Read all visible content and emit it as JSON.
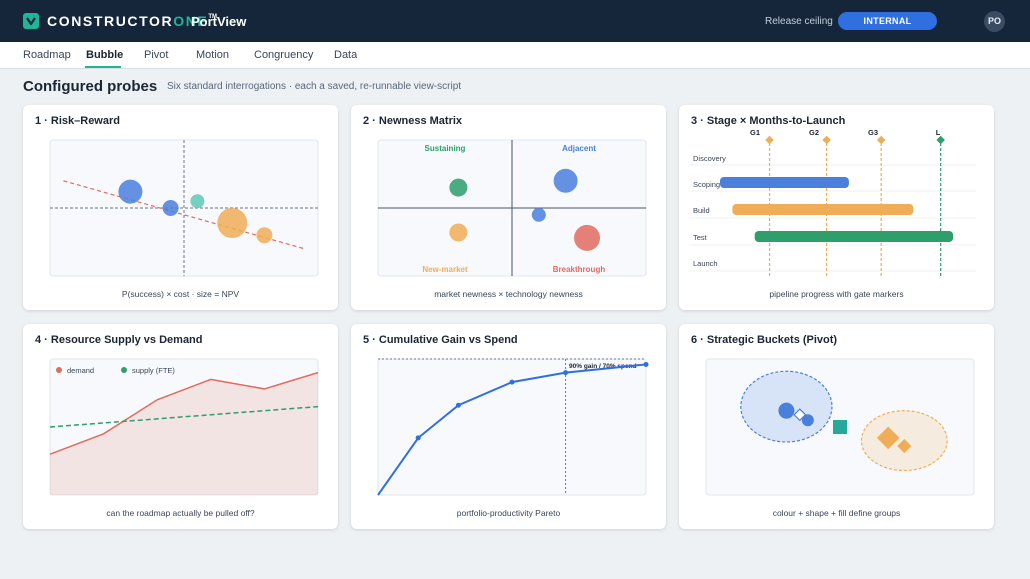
{
  "header": {
    "brand_main": "CONSTRUCTOR",
    "brand_accent": "ONE",
    "brand_tm": "TM",
    "product": "PortView",
    "release_ceiling_label": "Release ceiling",
    "release_ceiling_value": "INTERNAL",
    "avatar_initials": "PO",
    "logo_icon": "chevron-down-badge-icon"
  },
  "tabs": [
    {
      "label": "Roadmap",
      "active": false
    },
    {
      "label": "Bubble",
      "active": true
    },
    {
      "label": "Pivot",
      "active": false
    },
    {
      "label": "Motion",
      "active": false
    },
    {
      "label": "Congruency",
      "active": false
    },
    {
      "label": "Data",
      "active": false
    }
  ],
  "page": {
    "title": "Configured probes",
    "subtitle": "Six standard interrogations · each a saved, re-runnable view-script"
  },
  "colors": {
    "blue": "#4a7fdc",
    "teal": "#5fc9b6",
    "green": "#2e9e6a",
    "orange": "#f0ad57",
    "red": "#e06b5f",
    "accent": "#1fb59a",
    "nav": "#16263a"
  },
  "cards": [
    {
      "title": "1 · Risk–Reward",
      "caption": "P(success) × cost · size = NPV"
    },
    {
      "title": "2 · Newness Matrix",
      "caption": "market newness × technology newness",
      "quadrants": {
        "top_left": "Sustaining",
        "top_right": "Adjacent",
        "bottom_left": "New-market",
        "bottom_right": "Breakthrough"
      }
    },
    {
      "title": "3 · Stage × Months-to-Launch",
      "caption": "pipeline progress with gate markers",
      "gates": [
        "G1",
        "G2",
        "G3",
        "L"
      ],
      "stages": [
        "Discovery",
        "Scoping",
        "Build",
        "Test",
        "Launch"
      ]
    },
    {
      "title": "4 · Resource Supply vs Demand",
      "caption": "can the roadmap actually be pulled off?",
      "legend": [
        "demand",
        "supply (FTE)"
      ]
    },
    {
      "title": "5 · Cumulative Gain vs Spend",
      "caption": "portfolio-productivity Pareto",
      "annotation": "90% gain / 70% spend"
    },
    {
      "title": "6 · Strategic Buckets (Pivot)",
      "caption": "colour + shape + fill define groups"
    }
  ],
  "chart_data": [
    {
      "type": "scatter",
      "title": "1 · Risk–Reward",
      "xlabel": "",
      "ylabel": "",
      "points": [
        {
          "x": 0.3,
          "y": 0.62,
          "size": 12,
          "color": "#4a7fdc"
        },
        {
          "x": 0.45,
          "y": 0.5,
          "size": 8,
          "color": "#4a7fdc"
        },
        {
          "x": 0.55,
          "y": 0.55,
          "size": 7,
          "color": "#5fc9b6"
        },
        {
          "x": 0.68,
          "y": 0.39,
          "size": 15,
          "color": "#f0ad57"
        },
        {
          "x": 0.8,
          "y": 0.3,
          "size": 8,
          "color": "#f0ad57"
        }
      ],
      "trend": [
        [
          0.05,
          0.7
        ],
        [
          0.95,
          0.2
        ]
      ],
      "xlim": [
        0,
        1
      ],
      "ylim": [
        0,
        1
      ]
    },
    {
      "type": "scatter",
      "title": "2 · Newness Matrix",
      "xlabel": "",
      "ylabel": "",
      "points": [
        {
          "x": 0.3,
          "y": 0.65,
          "size": 9,
          "color": "#2e9e6a"
        },
        {
          "x": 0.7,
          "y": 0.7,
          "size": 12,
          "color": "#4a7fdc"
        },
        {
          "x": 0.6,
          "y": 0.45,
          "size": 7,
          "color": "#4a7fdc"
        },
        {
          "x": 0.3,
          "y": 0.32,
          "size": 9,
          "color": "#f0ad57"
        },
        {
          "x": 0.78,
          "y": 0.28,
          "size": 13,
          "color": "#e06b5f"
        }
      ],
      "xlim": [
        0,
        1
      ],
      "ylim": [
        0,
        1
      ]
    },
    {
      "type": "bar",
      "title": "3 · Stage × Months-to-Launch",
      "categories": [
        "Discovery",
        "Scoping",
        "Build",
        "Test",
        "Launch"
      ],
      "ranges": [
        null,
        [
          0.02,
          0.54
        ],
        [
          0.07,
          0.8
        ],
        [
          0.16,
          0.96
        ],
        null
      ],
      "bar_colors": [
        "",
        "#4a7fdc",
        "#f0ad57",
        "#2e9e6a",
        ""
      ],
      "gates": [
        {
          "label": "G1",
          "x": 0.22,
          "color": "#f0ad57"
        },
        {
          "label": "G2",
          "x": 0.45,
          "color": "#f0ad57"
        },
        {
          "label": "G3",
          "x": 0.67,
          "color": "#f0ad57"
        },
        {
          "label": "L",
          "x": 0.91,
          "color": "#2e9e6a"
        }
      ],
      "xlim": [
        0,
        1
      ]
    },
    {
      "type": "area",
      "title": "4 · Resource Supply vs Demand",
      "x": [
        0,
        1,
        2,
        3,
        4,
        5
      ],
      "series": [
        {
          "name": "demand",
          "values": [
            0.3,
            0.45,
            0.7,
            0.85,
            0.78,
            0.9
          ],
          "color": "#e06b5f"
        },
        {
          "name": "supply (FTE)",
          "values": [
            0.5,
            0.53,
            0.56,
            0.59,
            0.62,
            0.65
          ],
          "color": "#2e9e6a"
        }
      ],
      "ylim": [
        0,
        1
      ]
    },
    {
      "type": "line",
      "title": "5 · Cumulative Gain vs Spend",
      "x": [
        0,
        0.15,
        0.3,
        0.5,
        0.7,
        1.0
      ],
      "series": [
        {
          "name": "",
          "values": [
            0.0,
            0.42,
            0.66,
            0.83,
            0.9,
            0.96
          ],
          "color": "#2f6fe0"
        }
      ],
      "marker_x": 0.7,
      "reference_y": 1.0,
      "xlim": [
        0,
        1
      ],
      "ylim": [
        0,
        1
      ]
    },
    {
      "type": "scatter",
      "title": "6 · Strategic Buckets (Pivot)",
      "groups": [
        {
          "cx": 0.3,
          "cy": 0.65,
          "rx": 0.17,
          "ry": 0.26,
          "color": "#4a7fdc"
        },
        {
          "cx": 0.74,
          "cy": 0.4,
          "rx": 0.16,
          "ry": 0.22,
          "color": "#f0ad57"
        }
      ],
      "points": [
        {
          "x": 0.3,
          "y": 0.62,
          "shape": "circle",
          "size": 8,
          "color": "#4a7fdc"
        },
        {
          "x": 0.35,
          "y": 0.59,
          "shape": "diamond",
          "size": 4,
          "color": "#ffffff",
          "stroke": "#4a7fdc"
        },
        {
          "x": 0.38,
          "y": 0.55,
          "shape": "circle",
          "size": 6,
          "color": "#4a7fdc"
        },
        {
          "x": 0.5,
          "y": 0.5,
          "shape": "square",
          "size": 14,
          "color": "#26a99a"
        },
        {
          "x": 0.68,
          "y": 0.42,
          "shape": "diamond",
          "size": 8,
          "color": "#f0ad57"
        },
        {
          "x": 0.74,
          "y": 0.36,
          "shape": "diamond",
          "size": 5,
          "color": "#f0ad57"
        }
      ],
      "xlim": [
        0,
        1
      ],
      "ylim": [
        0,
        1
      ]
    }
  ]
}
